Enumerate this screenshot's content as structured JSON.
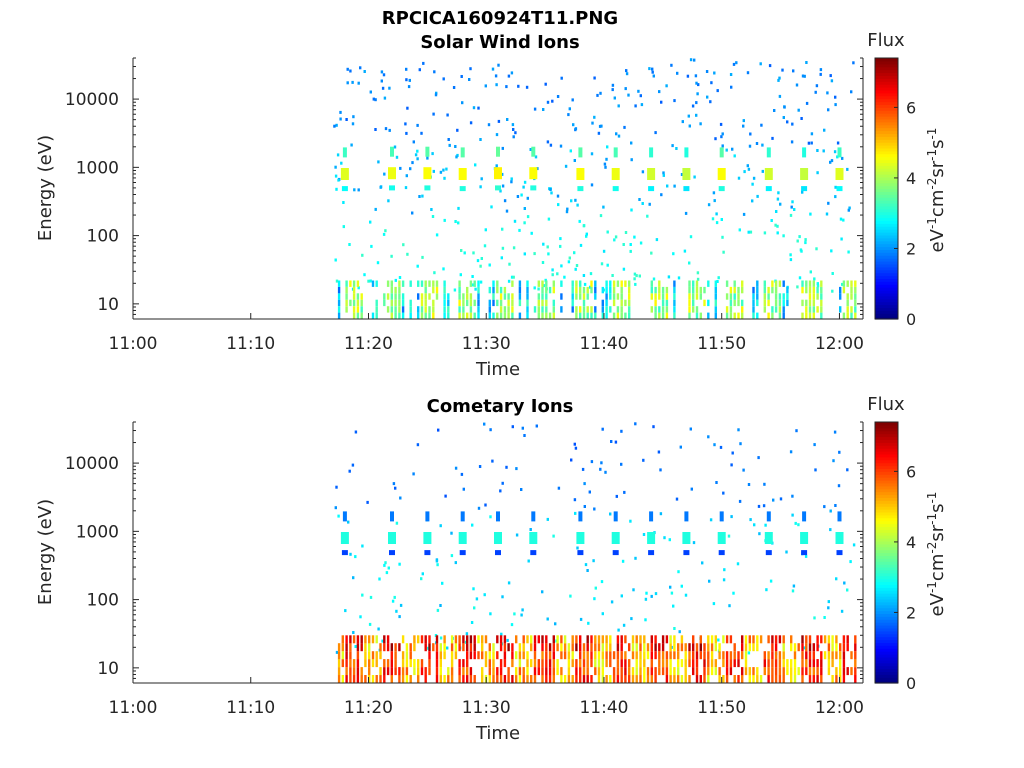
{
  "figure_title": "RPCICA160924T11.PNG",
  "colorbar": {
    "title": "Flux",
    "unit_base": "eV",
    "unit_exp1": "-1",
    "unit_base2": "cm",
    "unit_exp2": "-2",
    "unit_base3": "sr",
    "unit_exp3": "-1",
    "unit_base4": "s",
    "unit_exp4": "-1",
    "range": [
      0,
      7.4
    ],
    "ticks": [
      "0",
      "2",
      "4",
      "6"
    ],
    "colormap": "jet"
  },
  "chart_data": [
    {
      "type": "heatmap",
      "title": "Solar Wind Ions",
      "xlabel": "Time",
      "ylabel": "Energy (eV)",
      "x_ticks": [
        "11:00",
        "11:10",
        "11:20",
        "11:30",
        "11:40",
        "11:50",
        "12:00"
      ],
      "x_range_minutes": [
        0,
        62
      ],
      "y_scale": "log",
      "y_ticks": [
        "10",
        "100",
        "1000",
        "10000"
      ],
      "y_range": [
        6,
        40000
      ],
      "data_start": "11:17",
      "bursts": [
        {
          "t": "11:18",
          "energy": 800,
          "flux": 4.4
        },
        {
          "t": "11:22",
          "energy": 820,
          "flux": 4.5
        },
        {
          "t": "11:25",
          "energy": 820,
          "flux": 4.6
        },
        {
          "t": "11:28",
          "energy": 800,
          "flux": 4.6
        },
        {
          "t": "11:31",
          "energy": 820,
          "flux": 4.7
        },
        {
          "t": "11:34",
          "energy": 820,
          "flux": 4.6
        },
        {
          "t": "11:38",
          "energy": 800,
          "flux": 4.6
        },
        {
          "t": "11:41",
          "energy": 800,
          "flux": 4.5
        },
        {
          "t": "11:44",
          "energy": 800,
          "flux": 4.3
        },
        {
          "t": "11:47",
          "energy": 800,
          "flux": 4.2
        },
        {
          "t": "11:50",
          "energy": 800,
          "flux": 4.6
        },
        {
          "t": "11:54",
          "energy": 800,
          "flux": 4.3
        },
        {
          "t": "11:57",
          "energy": 800,
          "flux": 4.2
        },
        {
          "t": "12:00",
          "energy": 800,
          "flux": 4.4
        }
      ],
      "low_energy_flux": 3.3
    },
    {
      "type": "heatmap",
      "title": "Cometary Ions",
      "xlabel": "Time",
      "ylabel": "Energy (eV)",
      "x_ticks": [
        "11:00",
        "11:10",
        "11:20",
        "11:30",
        "11:40",
        "11:50",
        "12:00"
      ],
      "x_range_minutes": [
        0,
        62
      ],
      "y_scale": "log",
      "y_ticks": [
        "10",
        "100",
        "1000",
        "10000"
      ],
      "y_range": [
        6,
        40000
      ],
      "data_start": "11:17",
      "bursts": [
        {
          "t": "11:18",
          "energy": 800,
          "flux": 3.0
        },
        {
          "t": "11:22",
          "energy": 800,
          "flux": 3.0
        },
        {
          "t": "11:25",
          "energy": 800,
          "flux": 3.0
        },
        {
          "t": "11:28",
          "energy": 800,
          "flux": 3.0
        },
        {
          "t": "11:31",
          "energy": 800,
          "flux": 3.0
        },
        {
          "t": "11:34",
          "energy": 800,
          "flux": 3.0
        },
        {
          "t": "11:38",
          "energy": 800,
          "flux": 3.0
        },
        {
          "t": "11:41",
          "energy": 800,
          "flux": 3.0
        },
        {
          "t": "11:44",
          "energy": 800,
          "flux": 3.0
        },
        {
          "t": "11:47",
          "energy": 800,
          "flux": 3.0
        },
        {
          "t": "11:50",
          "energy": 800,
          "flux": 3.0
        },
        {
          "t": "11:54",
          "energy": 800,
          "flux": 3.0
        },
        {
          "t": "11:57",
          "energy": 800,
          "flux": 3.0
        },
        {
          "t": "12:00",
          "energy": 800,
          "flux": 3.0
        }
      ],
      "low_energy_flux": 5.9
    }
  ]
}
